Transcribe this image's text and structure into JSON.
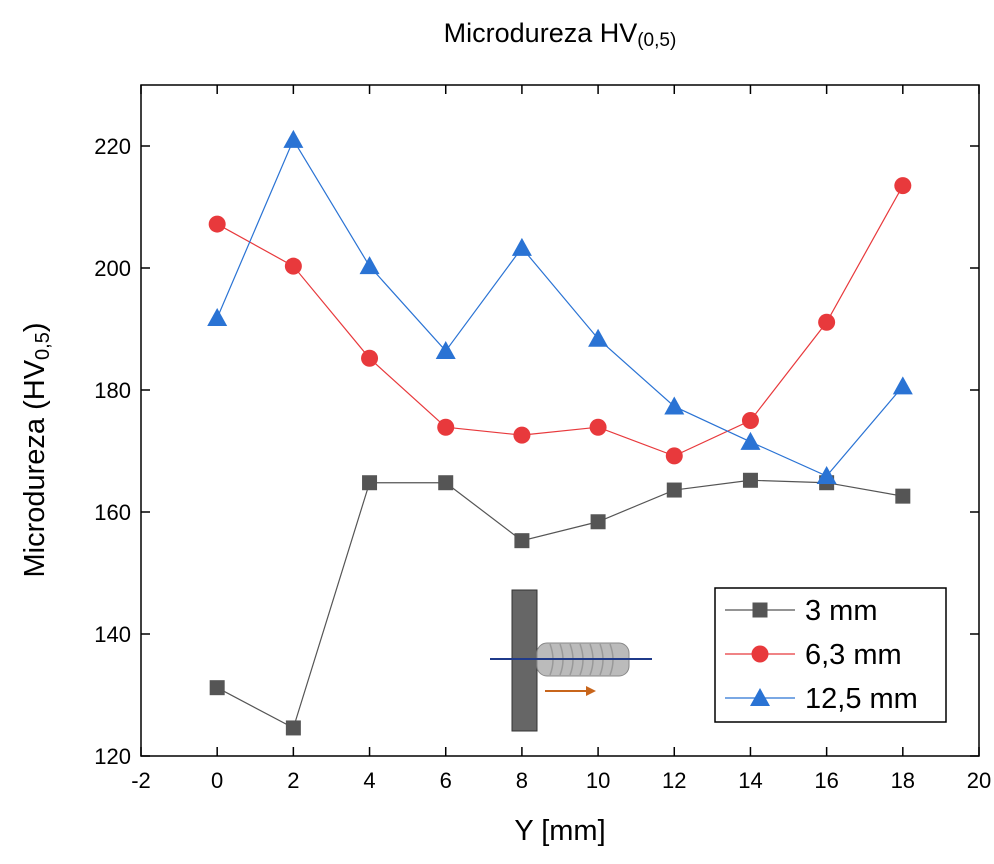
{
  "chart_data": {
    "type": "line",
    "title": [
      "Microdureza HV",
      "(0,5)"
    ],
    "xlabel": "Y [mm]",
    "ylabel": [
      "Microdureza (HV",
      "0,5",
      ")"
    ],
    "x": [
      0,
      2,
      4,
      6,
      8,
      10,
      12,
      14,
      16,
      18
    ],
    "series": [
      {
        "name": "3 mm",
        "color": "#555555",
        "marker": "square",
        "values": [
          131.2,
          124.6,
          164.8,
          164.8,
          155.3,
          158.4,
          163.6,
          165.2,
          164.8,
          162.6
        ]
      },
      {
        "name": "6,3 mm",
        "color": "#e8393c",
        "marker": "circle",
        "values": [
          207.2,
          200.3,
          185.2,
          173.9,
          172.6,
          173.9,
          169.2,
          175.0,
          191.1,
          213.5
        ]
      },
      {
        "name": "12,5 mm",
        "color": "#2a73d4",
        "marker": "triangle",
        "values": [
          191.8,
          221.0,
          200.3,
          186.4,
          203.3,
          188.4,
          177.3,
          171.5,
          165.9,
          180.6
        ]
      }
    ],
    "xlim": [
      -2,
      20
    ],
    "xticks": [
      -2,
      0,
      2,
      4,
      6,
      8,
      10,
      12,
      14,
      16,
      18,
      20
    ],
    "ylim": [
      120,
      230
    ],
    "yticks": [
      120,
      140,
      160,
      180,
      200,
      220
    ],
    "legend": "lower-right"
  }
}
